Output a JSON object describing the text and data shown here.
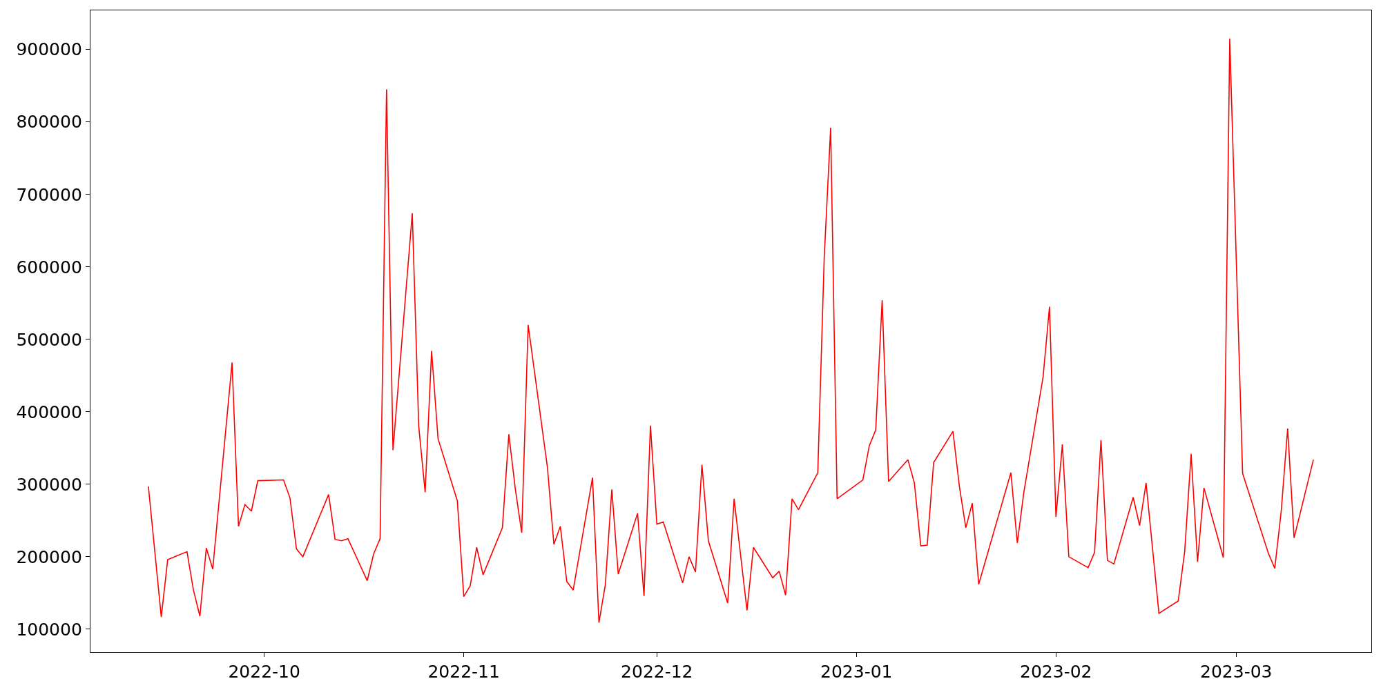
{
  "chart_data": {
    "type": "line",
    "grid": false,
    "marker": "none",
    "line_style": "solid",
    "xlim": [
      "2022-09-04",
      "2023-03-22"
    ],
    "xticks": [
      {
        "value": "2022-10-01",
        "label": "2022-10"
      },
      {
        "value": "2022-11-01",
        "label": "2022-11"
      },
      {
        "value": "2022-12-01",
        "label": "2022-12"
      },
      {
        "value": "2023-01-01",
        "label": "2023-01"
      },
      {
        "value": "2023-02-01",
        "label": "2023-02"
      },
      {
        "value": "2023-03-01",
        "label": "2023-03"
      }
    ],
    "ylim": [
      68500,
      954000
    ],
    "yticks": [
      100000,
      200000,
      300000,
      400000,
      500000,
      600000,
      700000,
      800000,
      900000
    ],
    "x": [
      "2022-09-13",
      "2022-09-15",
      "2022-09-16",
      "2022-09-19",
      "2022-09-20",
      "2022-09-21",
      "2022-09-22",
      "2022-09-23",
      "2022-09-26",
      "2022-09-27",
      "2022-09-28",
      "2022-09-29",
      "2022-09-30",
      "2022-10-04",
      "2022-10-05",
      "2022-10-06",
      "2022-10-07",
      "2022-10-11",
      "2022-10-12",
      "2022-10-13",
      "2022-10-14",
      "2022-10-17",
      "2022-10-18",
      "2022-10-19",
      "2022-10-20",
      "2022-10-21",
      "2022-10-24",
      "2022-10-25",
      "2022-10-26",
      "2022-10-27",
      "2022-10-28",
      "2022-10-31",
      "2022-11-01",
      "2022-11-02",
      "2022-11-03",
      "2022-11-04",
      "2022-11-07",
      "2022-11-08",
      "2022-11-09",
      "2022-11-10",
      "2022-11-11",
      "2022-11-14",
      "2022-11-15",
      "2022-11-16",
      "2022-11-17",
      "2022-11-18",
      "2022-11-21",
      "2022-11-22",
      "2022-11-23",
      "2022-11-24",
      "2022-11-25",
      "2022-11-28",
      "2022-11-29",
      "2022-11-30",
      "2022-12-01",
      "2022-12-02",
      "2022-12-05",
      "2022-12-06",
      "2022-12-07",
      "2022-12-08",
      "2022-12-09",
      "2022-12-12",
      "2022-12-13",
      "2022-12-15",
      "2022-12-16",
      "2022-12-19",
      "2022-12-20",
      "2022-12-21",
      "2022-12-22",
      "2022-12-23",
      "2022-12-26",
      "2022-12-27",
      "2022-12-28",
      "2022-12-29",
      "2023-01-02",
      "2023-01-03",
      "2023-01-04",
      "2023-01-05",
      "2023-01-06",
      "2023-01-09",
      "2023-01-10",
      "2023-01-11",
      "2023-01-12",
      "2023-01-13",
      "2023-01-16",
      "2023-01-17",
      "2023-01-18",
      "2023-01-19",
      "2023-01-20",
      "2023-01-25",
      "2023-01-26",
      "2023-01-27",
      "2023-01-30",
      "2023-01-31",
      "2023-02-01",
      "2023-02-02",
      "2023-02-03",
      "2023-02-06",
      "2023-02-07",
      "2023-02-08",
      "2023-02-09",
      "2023-02-10",
      "2023-02-13",
      "2023-02-14",
      "2023-02-15",
      "2023-02-17",
      "2023-02-20",
      "2023-02-21",
      "2023-02-22",
      "2023-02-23",
      "2023-02-24",
      "2023-02-27",
      "2023-02-28",
      "2023-03-02",
      "2023-03-06",
      "2023-03-07",
      "2023-03-08",
      "2023-03-09",
      "2023-03-10",
      "2023-03-13"
    ],
    "series": [
      {
        "color": "#ff0000",
        "values": [
          297000,
          117000,
          196000,
          207000,
          154000,
          118000,
          212000,
          183000,
          468000,
          242000,
          272000,
          263000,
          305000,
          306000,
          281000,
          211000,
          200000,
          286000,
          224000,
          222000,
          225000,
          167000,
          204000,
          225000,
          845000,
          347000,
          674000,
          380000,
          289000,
          484000,
          363000,
          277000,
          145000,
          160000,
          213000,
          175000,
          240000,
          369000,
          294000,
          233000,
          520000,
          323000,
          217000,
          242000,
          166000,
          154000,
          309000,
          109000,
          162000,
          293000,
          176000,
          260000,
          146000,
          381000,
          245000,
          248000,
          164000,
          200000,
          179000,
          327000,
          222000,
          136000,
          280000,
          126000,
          213000,
          171000,
          180000,
          147000,
          280000,
          265000,
          316000,
          613000,
          792000,
          280000,
          306000,
          353000,
          375000,
          554000,
          304000,
          334000,
          302000,
          215000,
          216000,
          330000,
          373000,
          297000,
          240000,
          274000,
          162000,
          316000,
          219000,
          288000,
          448000,
          545000,
          255000,
          355000,
          200000,
          185000,
          206000,
          361000,
          195000,
          190000,
          282000,
          243000,
          302000,
          122000,
          139000,
          207000,
          342000,
          193000,
          295000,
          199000,
          915000,
          315000,
          205000,
          184000,
          263000,
          377000,
          226000,
          334000
        ]
      }
    ]
  }
}
